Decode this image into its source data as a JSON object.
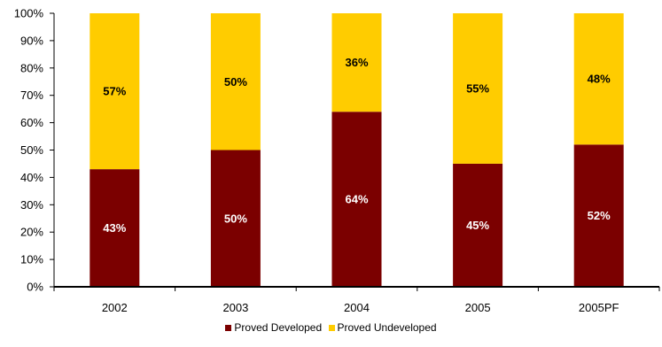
{
  "chart_data": {
    "type": "bar",
    "stacked": true,
    "percent": true,
    "categories": [
      "2002",
      "2003",
      "2004",
      "2005",
      "2005PF"
    ],
    "series": [
      {
        "name": "Proved Developed",
        "values": [
          43,
          50,
          64,
          45,
          52
        ],
        "labels": [
          "43%",
          "50%",
          "64%",
          "45%",
          "52%"
        ],
        "color": "#7b0000"
      },
      {
        "name": "Proved Undeveloped",
        "values": [
          57,
          50,
          36,
          55,
          48
        ],
        "labels": [
          "57%",
          "50%",
          "36%",
          "55%",
          "48%"
        ],
        "color": "#ffcc00"
      }
    ],
    "ylim": [
      0,
      100
    ],
    "yticks": [
      "0%",
      "10%",
      "20%",
      "30%",
      "40%",
      "50%",
      "60%",
      "70%",
      "80%",
      "90%",
      "100%"
    ],
    "grid": false,
    "legend": "bottom-center"
  }
}
